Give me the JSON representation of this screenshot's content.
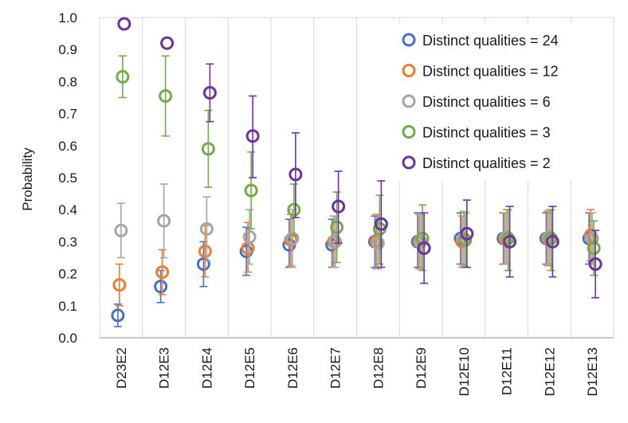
{
  "chart_data": {
    "type": "scatter",
    "title": "",
    "xlabel": "",
    "ylabel": "Probability",
    "ylim": [
      0,
      1.0
    ],
    "yticks": [
      0.0,
      0.1,
      0.2,
      0.3,
      0.4,
      0.5,
      0.6,
      0.7,
      0.8,
      0.9,
      1.0
    ],
    "ytick_labels": [
      "0.0",
      "0.1",
      "0.2",
      "0.3",
      "0.4",
      "0.5",
      "0.6",
      "0.7",
      "0.8",
      "0.9",
      "1.0"
    ],
    "grid": "vertical",
    "legend_position": "top-right",
    "categories": [
      "D23E2",
      "D12E3",
      "D12E4",
      "D12E5",
      "D12E6",
      "D12E7",
      "D12E8",
      "D12E9",
      "D12E10",
      "D12E11",
      "D12E12",
      "D12E13"
    ],
    "series": [
      {
        "name": "Distinct qualities = 24",
        "color": "#4472c4",
        "values": [
          0.07,
          0.16,
          0.23,
          0.27,
          0.29,
          0.29,
          0.3,
          0.3,
          0.31,
          0.31,
          0.31,
          0.31
        ],
        "err_low": [
          0.035,
          0.11,
          0.16,
          0.195,
          0.22,
          0.22,
          0.22,
          0.22,
          0.23,
          0.23,
          0.23,
          0.23
        ],
        "err_high": [
          0.105,
          0.21,
          0.3,
          0.345,
          0.37,
          0.37,
          0.38,
          0.39,
          0.39,
          0.39,
          0.39,
          0.39
        ]
      },
      {
        "name": "Distinct qualities = 12",
        "color": "#ed7d31",
        "values": [
          0.165,
          0.205,
          0.27,
          0.28,
          0.305,
          0.3,
          0.3,
          0.3,
          0.3,
          0.31,
          0.31,
          0.32
        ],
        "err_low": [
          0.1,
          0.135,
          0.19,
          0.205,
          0.225,
          0.22,
          0.215,
          0.215,
          0.22,
          0.23,
          0.225,
          0.24
        ],
        "err_high": [
          0.23,
          0.275,
          0.35,
          0.36,
          0.385,
          0.38,
          0.385,
          0.385,
          0.38,
          0.39,
          0.395,
          0.4
        ]
      },
      {
        "name": "Distinct qualities = 6",
        "color": "#a5a5a5",
        "values": [
          0.335,
          0.365,
          0.34,
          0.315,
          0.31,
          0.3,
          0.295,
          0.3,
          0.31,
          0.315,
          0.315,
          0.31
        ],
        "err_low": [
          0.25,
          0.25,
          0.24,
          0.23,
          0.22,
          0.22,
          0.215,
          0.215,
          0.225,
          0.23,
          0.23,
          0.23
        ],
        "err_high": [
          0.42,
          0.48,
          0.44,
          0.4,
          0.4,
          0.38,
          0.375,
          0.385,
          0.395,
          0.4,
          0.4,
          0.39
        ]
      },
      {
        "name": "Distinct qualities = 3",
        "color": "#70ad47",
        "values": [
          0.815,
          0.755,
          0.59,
          0.46,
          0.4,
          0.345,
          0.34,
          0.31,
          0.305,
          0.31,
          0.31,
          0.28
        ],
        "err_low": [
          0.75,
          0.63,
          0.47,
          0.34,
          0.32,
          0.235,
          0.23,
          0.21,
          0.22,
          0.21,
          0.21,
          0.195
        ],
        "err_high": [
          0.88,
          0.88,
          0.71,
          0.58,
          0.48,
          0.455,
          0.445,
          0.415,
          0.39,
          0.4,
          0.4,
          0.365
        ]
      },
      {
        "name": "Distinct qualities = 2",
        "color": "#7030a0",
        "values": [
          0.98,
          0.92,
          0.765,
          0.63,
          0.51,
          0.41,
          0.355,
          0.28,
          0.325,
          0.3,
          0.3,
          0.23
        ],
        "err_low": [
          null,
          null,
          0.675,
          0.5,
          0.375,
          0.295,
          0.22,
          0.17,
          0.22,
          0.19,
          0.19,
          0.125
        ],
        "err_high": [
          null,
          null,
          0.855,
          0.755,
          0.64,
          0.52,
          0.49,
          0.39,
          0.43,
          0.41,
          0.41,
          0.335
        ]
      }
    ]
  }
}
